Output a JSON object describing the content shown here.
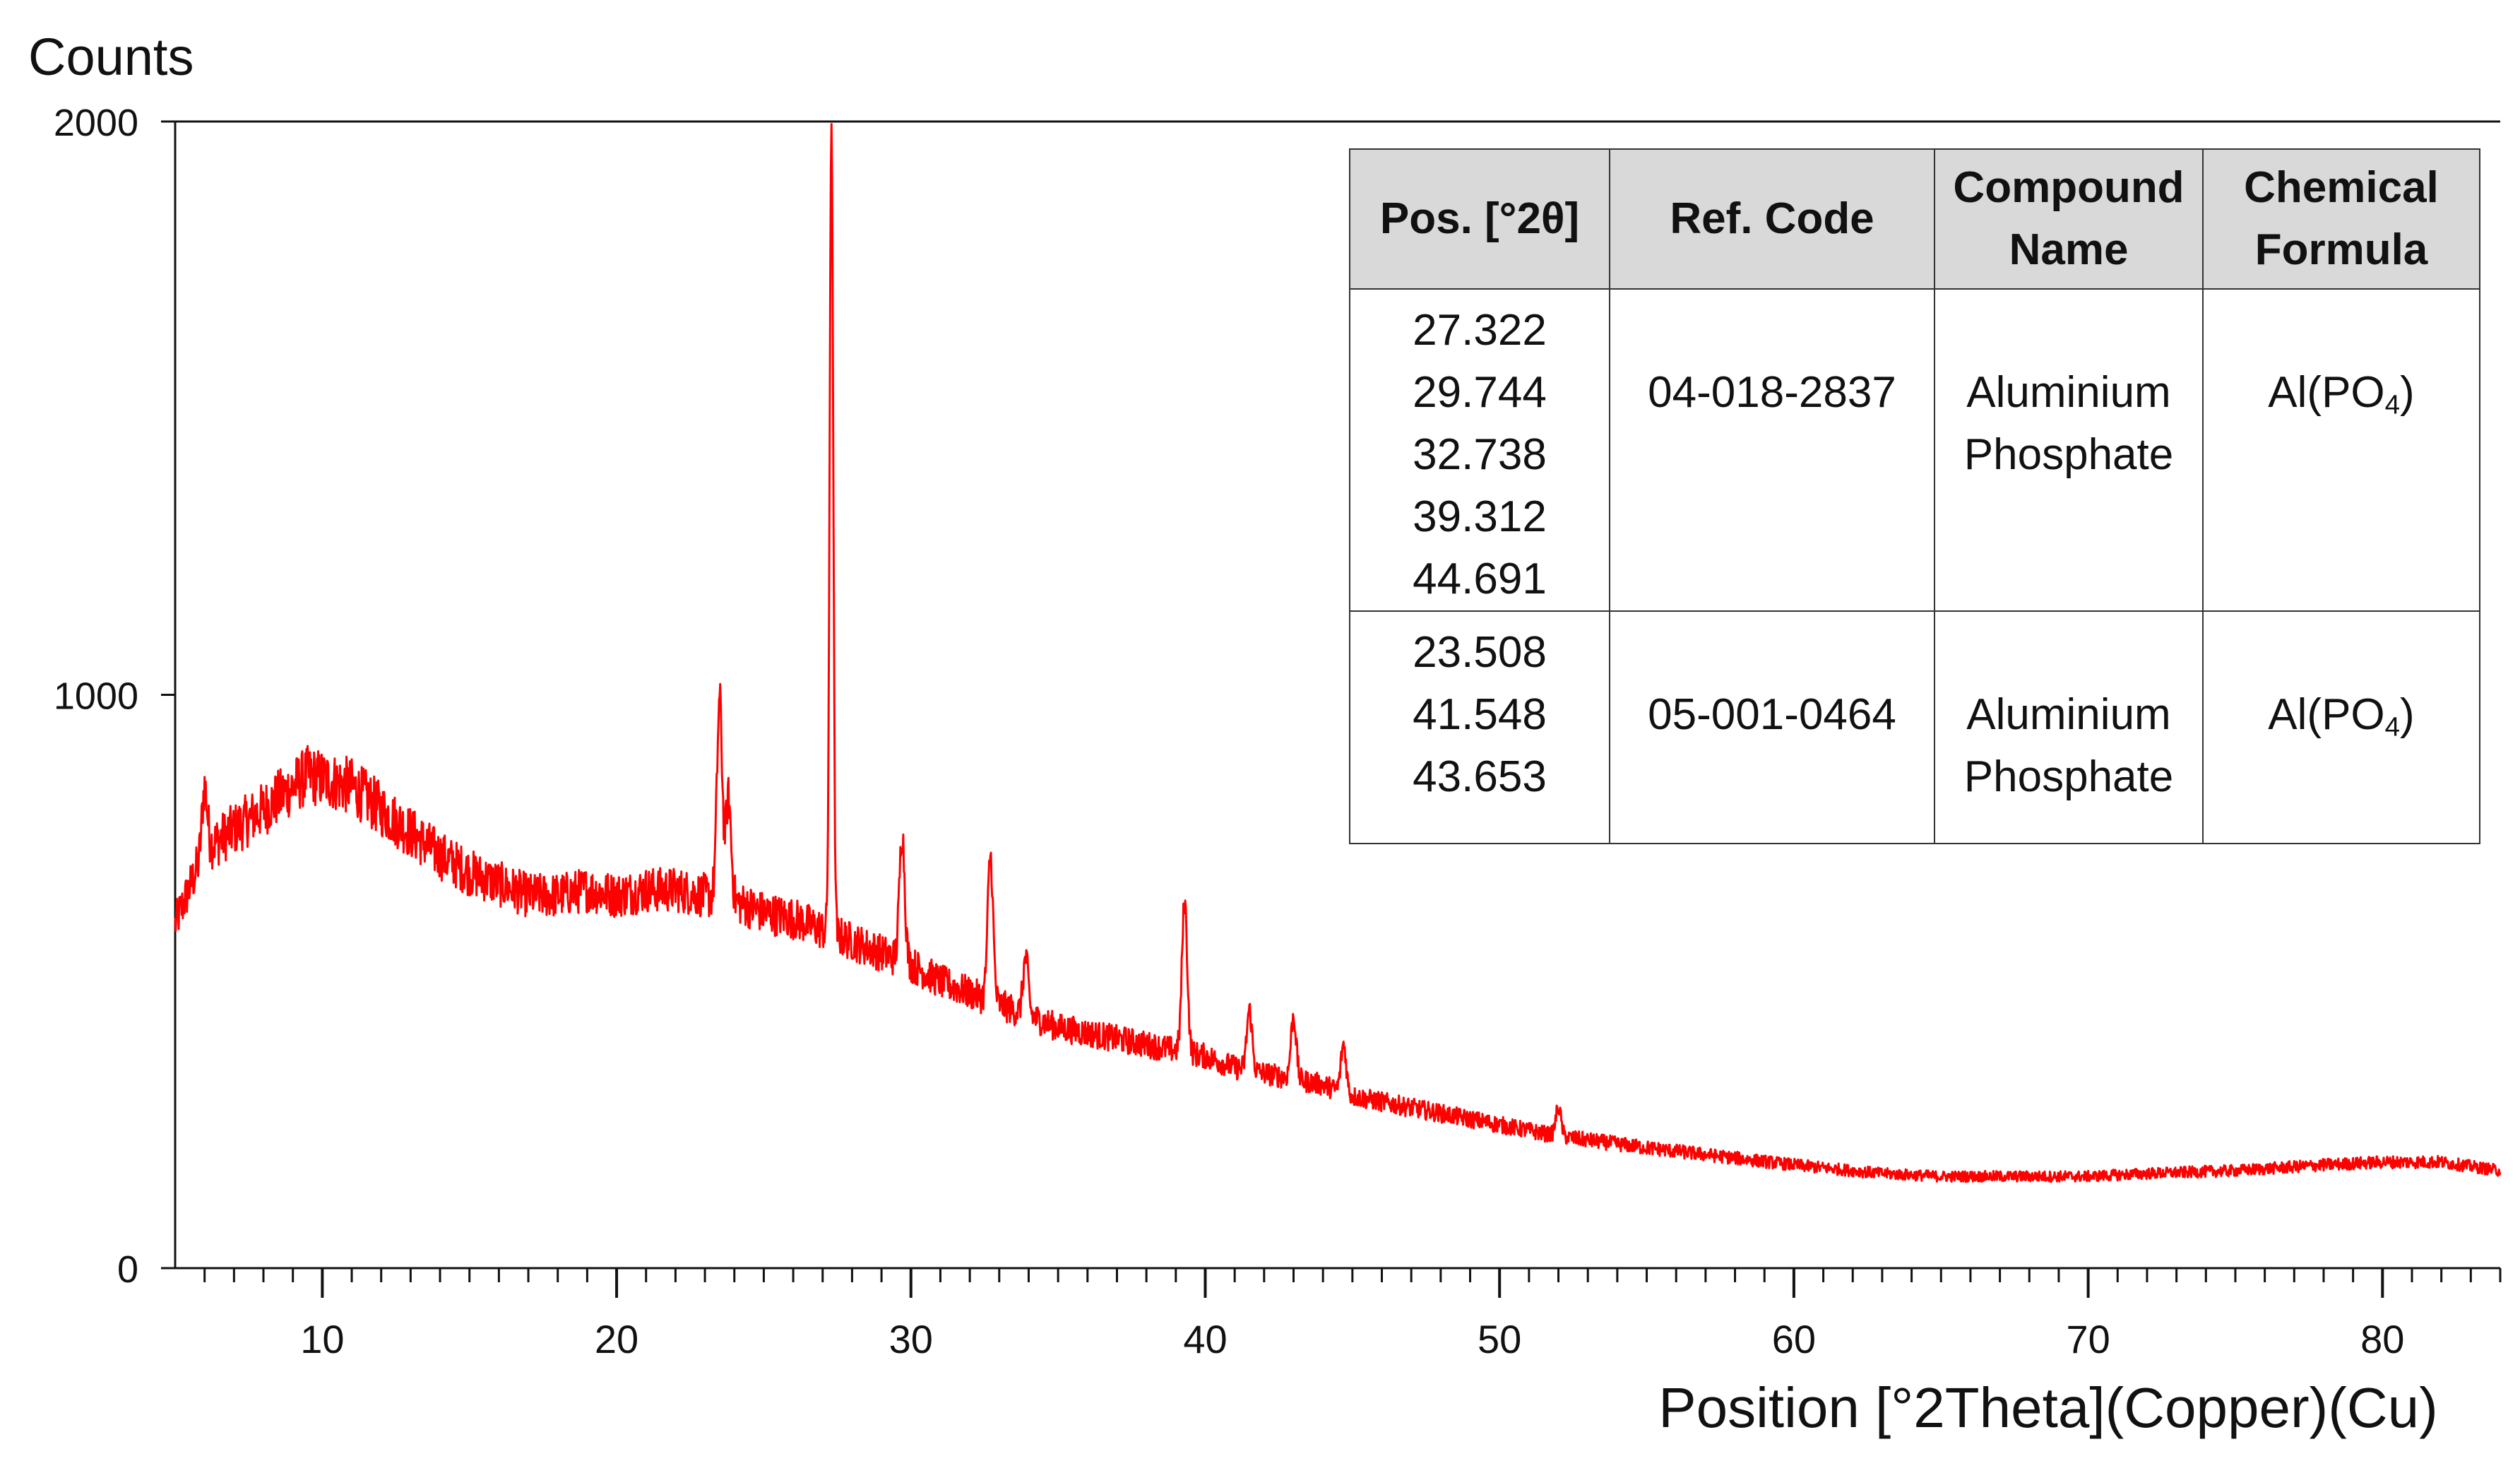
{
  "chart_data": {
    "type": "line",
    "ylabel": "Counts",
    "xlabel": "Position [°2Theta](Copper)(Cu)",
    "xlim": [
      5,
      84
    ],
    "ylim": [
      0,
      2000
    ],
    "y_ticks": [
      0,
      1000,
      2000
    ],
    "x_ticks": [
      10,
      20,
      30,
      40,
      50,
      60,
      70,
      80
    ],
    "x_minor_step": 1,
    "line_color": "#ff0000",
    "series": [
      {
        "x": [
          5,
          6,
          8,
          9.5,
          11,
          12,
          13,
          14,
          15,
          16,
          17,
          18,
          19,
          20,
          21,
          22,
          23,
          24,
          25,
          26,
          27,
          28,
          29,
          30,
          31,
          32,
          33,
          34,
          35,
          36,
          37,
          38,
          39,
          40,
          41,
          42,
          43,
          44,
          45,
          46,
          48,
          50,
          52,
          55,
          60,
          63,
          65,
          68,
          70,
          72,
          75,
          78,
          80,
          82,
          84
        ],
        "y": [
          600,
          730,
          800,
          860,
          840,
          800,
          760,
          720,
          690,
          670,
          650,
          650,
          660,
          650,
          660,
          660,
          650,
          640,
          620,
          610,
          590,
          570,
          550,
          530,
          500,
          480,
          460,
          440,
          420,
          410,
          400,
          390,
          380,
          370,
          350,
          340,
          330,
          320,
          300,
          290,
          270,
          250,
          230,
          210,
          180,
          165,
          160,
          160,
          160,
          165,
          170,
          180,
          185,
          185,
          170
        ]
      }
    ],
    "peaks": [
      {
        "x": 6.0,
        "y": 840
      },
      {
        "x": 23.5,
        "y": 990
      },
      {
        "x": 23.8,
        "y": 820
      },
      {
        "x": 27.3,
        "y": 2000
      },
      {
        "x": 29.7,
        "y": 760
      },
      {
        "x": 32.7,
        "y": 720
      },
      {
        "x": 33.9,
        "y": 540
      },
      {
        "x": 39.3,
        "y": 640
      },
      {
        "x": 41.5,
        "y": 450
      },
      {
        "x": 43.0,
        "y": 440
      },
      {
        "x": 44.7,
        "y": 390
      },
      {
        "x": 52.0,
        "y": 280
      }
    ]
  },
  "table": {
    "headers": [
      "Pos. [°2θ]",
      "Ref. Code",
      "Compound Name",
      "Chemical Formula"
    ],
    "rows": [
      {
        "positions": [
          "27.322",
          "29.744",
          "32.738",
          "39.312",
          "44.691"
        ],
        "ref_code": "04-018-2837",
        "compound_name": "Aluminium Phosphate",
        "formula_main": "Al(PO",
        "formula_sub": "4",
        "formula_end": ")"
      },
      {
        "positions": [
          "23.508",
          "41.548",
          "43.653"
        ],
        "ref_code": "05-001-0464",
        "compound_name": "Aluminium Phosphate",
        "formula_main": "Al(PO",
        "formula_sub": "4",
        "formula_end": ")"
      }
    ]
  }
}
